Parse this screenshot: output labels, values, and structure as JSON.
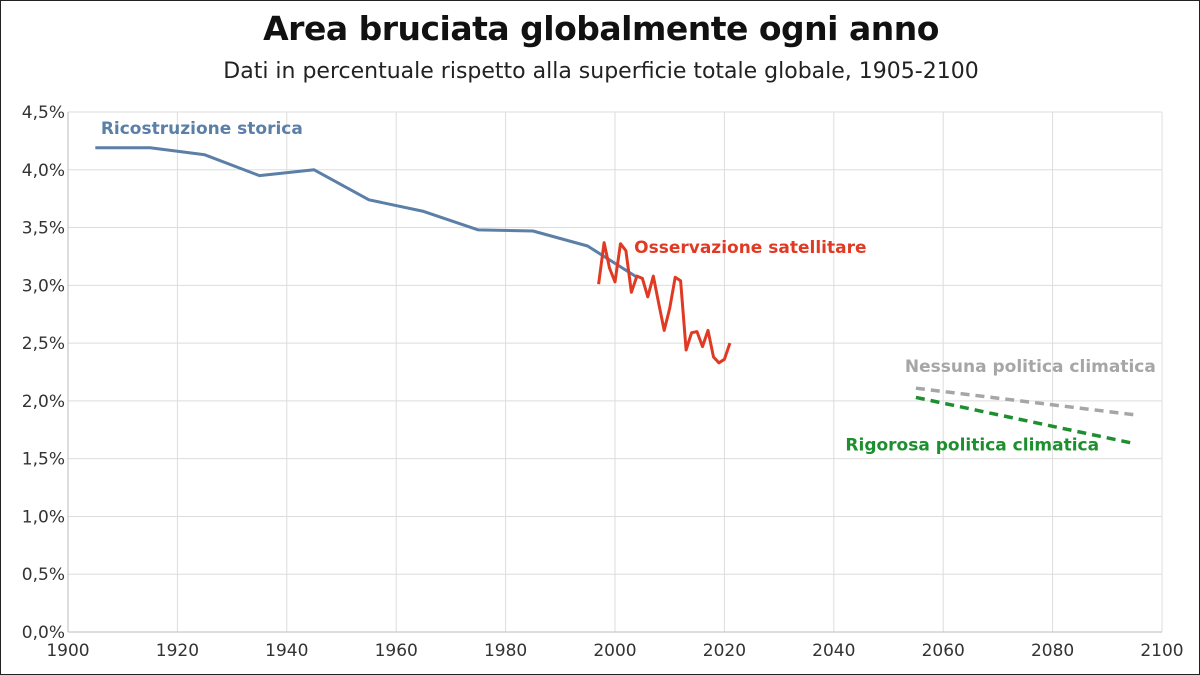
{
  "title": "Area bruciata globalmente ogni anno",
  "subtitle": "Dati in percentuale rispetto alla superficie totale globale, 1905-2100",
  "chart_data": {
    "type": "line",
    "title": "Area bruciata globalmente ogni anno",
    "subtitle": "Dati in percentuale rispetto alla superficie totale globale, 1905-2100",
    "xlabel": "",
    "ylabel": "",
    "xlim": [
      1900,
      2100
    ],
    "ylim": [
      0,
      4.5
    ],
    "grid": true,
    "x_ticks": [
      1900,
      1920,
      1940,
      1960,
      1980,
      2000,
      2020,
      2040,
      2060,
      2080,
      2100
    ],
    "x_tick_labels": [
      "1900",
      "1920",
      "1940",
      "1960",
      "1980",
      "2000",
      "2020",
      "2040",
      "2060",
      "2080",
      "2100"
    ],
    "y_ticks": [
      0,
      0.5,
      1.0,
      1.5,
      2.0,
      2.5,
      3.0,
      3.5,
      4.0,
      4.5
    ],
    "y_tick_labels": [
      "0,0%",
      "0,5%",
      "1,0%",
      "1,5%",
      "2,0%",
      "2,5%",
      "3,0%",
      "3,5%",
      "4,0%",
      "4,5%"
    ],
    "series": [
      {
        "name": "Ricostruzione storica",
        "color": "#5b7fa6",
        "dashed": false,
        "x": [
          1905,
          1915,
          1925,
          1935,
          1945,
          1955,
          1965,
          1975,
          1985,
          1995,
          2004
        ],
        "y": [
          4.19,
          4.19,
          4.13,
          3.95,
          4.0,
          3.74,
          3.64,
          3.48,
          3.47,
          3.34,
          3.07
        ]
      },
      {
        "name": "Osservazione satellitare",
        "color": "#e03a24",
        "dashed": false,
        "x": [
          1997,
          1998,
          1999,
          2000,
          2001,
          2002,
          2003,
          2004,
          2005,
          2006,
          2007,
          2008,
          2009,
          2010,
          2011,
          2012,
          2013,
          2014,
          2015,
          2016,
          2017,
          2018,
          2019,
          2020,
          2021
        ],
        "y": [
          3.01,
          3.37,
          3.15,
          3.03,
          3.36,
          3.3,
          2.94,
          3.08,
          3.06,
          2.9,
          3.08,
          2.84,
          2.61,
          2.8,
          3.07,
          3.04,
          2.44,
          2.59,
          2.6,
          2.47,
          2.61,
          2.38,
          2.33,
          2.36,
          2.5
        ]
      },
      {
        "name": "Nessuna politica climatica",
        "color": "#a6a6a6",
        "dashed": true,
        "x": [
          2055,
          2095
        ],
        "y": [
          2.11,
          1.88
        ]
      },
      {
        "name": "Rigorosa politica climatica",
        "color": "#1e8f2e",
        "dashed": true,
        "x": [
          2055,
          2095
        ],
        "y": [
          2.03,
          1.63
        ]
      }
    ]
  }
}
